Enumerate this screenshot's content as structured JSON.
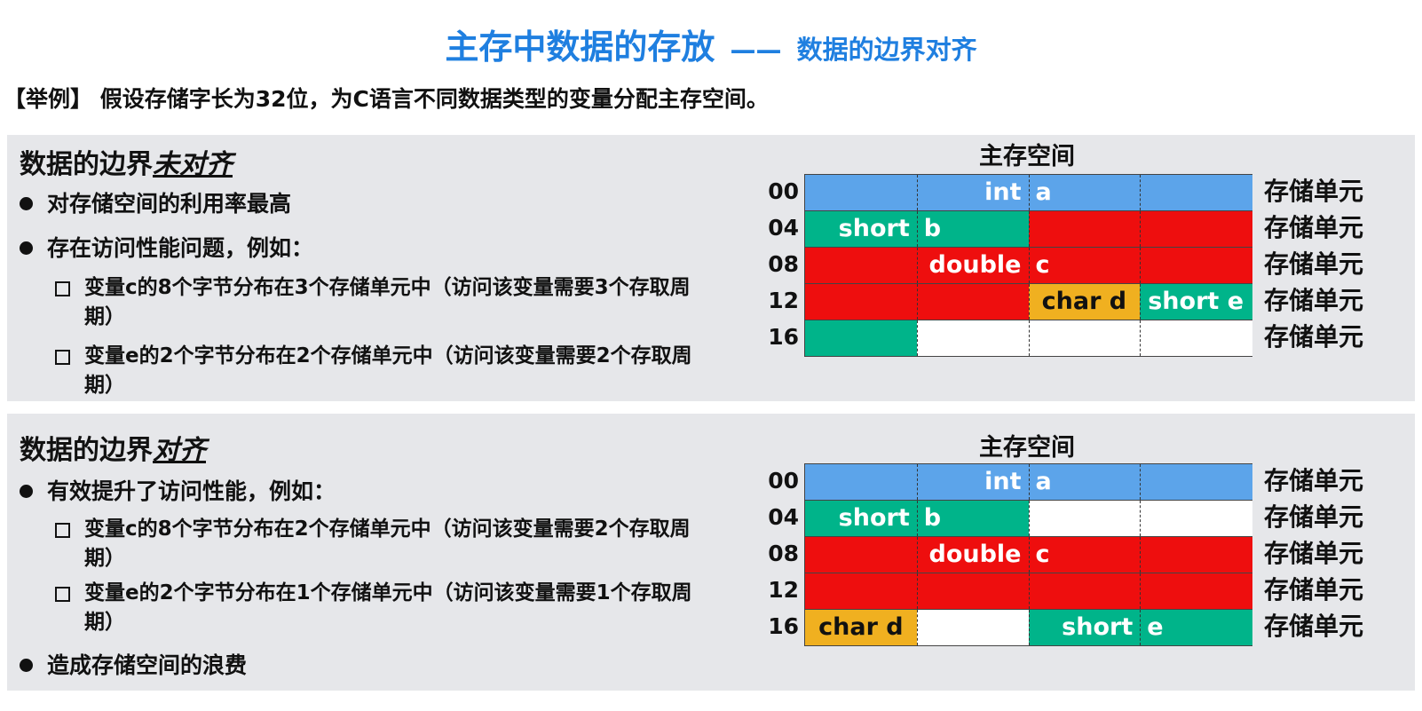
{
  "header": {
    "title_main": "主存中数据的存放",
    "title_dash": "——",
    "title_sub": "数据的边界对齐"
  },
  "intro": "【举例】 假设存储字长为32位，为C语言不同数据类型的变量分配主存空间。",
  "colors": {
    "int": "#5ca4ea",
    "short": "#00b48a",
    "double": "#ee0e0e",
    "char": "#f0b020",
    "empty": "#ffffff"
  },
  "sections": [
    {
      "heading_prefix": "数据的边界",
      "heading_em": "未对齐",
      "bullets": [
        "对存储空间的利用率最高",
        "存在访问性能问题，例如："
      ],
      "subitems": [
        "变量c的8个字节分布在3个存储单元中（访问该变量需要3个存取周期）",
        "变量e的2个字节分布在2个存储单元中（访问该变量需要2个存取周期）"
      ],
      "tail_bullet": "",
      "memory": {
        "title": "主存空间",
        "unit_label": "存储单元",
        "rows": [
          {
            "addr": "00",
            "bytes": [
              "int",
              "int",
              "int",
              "int"
            ],
            "labels": [
              {
                "text": "int",
                "col": 1,
                "align": "right"
              },
              {
                "text": "a",
                "col": 2,
                "align": "left"
              }
            ]
          },
          {
            "addr": "04",
            "bytes": [
              "short",
              "short",
              "double",
              "double"
            ],
            "labels": [
              {
                "text": "short",
                "col": 0,
                "align": "right"
              },
              {
                "text": "b",
                "col": 1,
                "align": "left"
              }
            ]
          },
          {
            "addr": "08",
            "bytes": [
              "double",
              "double",
              "double",
              "double"
            ],
            "labels": [
              {
                "text": "double",
                "col": 1,
                "align": "right"
              },
              {
                "text": "c",
                "col": 2,
                "align": "left"
              }
            ]
          },
          {
            "addr": "12",
            "bytes": [
              "double",
              "double",
              "char",
              "short"
            ],
            "labels": [
              {
                "text": "char  d",
                "col": 2,
                "align": "center",
                "dark": true
              },
              {
                "text": "short  e",
                "col": 3,
                "align": "center"
              }
            ]
          },
          {
            "addr": "16",
            "bytes": [
              "short",
              "empty",
              "empty",
              "empty"
            ],
            "labels": []
          }
        ]
      }
    },
    {
      "heading_prefix": "数据的边界",
      "heading_em": "对齐",
      "bullets": [
        "有效提升了访问性能，例如："
      ],
      "subitems": [
        "变量c的8个字节分布在2个存储单元中（访问该变量需要2个存取周期）",
        "变量e的2个字节分布在1个存储单元中（访问该变量需要1个存取周期）"
      ],
      "tail_bullet": "造成存储空间的浪费",
      "memory": {
        "title": "主存空间",
        "unit_label": "存储单元",
        "rows": [
          {
            "addr": "00",
            "bytes": [
              "int",
              "int",
              "int",
              "int"
            ],
            "labels": [
              {
                "text": "int",
                "col": 1,
                "align": "right"
              },
              {
                "text": "a",
                "col": 2,
                "align": "left"
              }
            ]
          },
          {
            "addr": "04",
            "bytes": [
              "short",
              "short",
              "empty",
              "empty"
            ],
            "labels": [
              {
                "text": "short",
                "col": 0,
                "align": "right"
              },
              {
                "text": "b",
                "col": 1,
                "align": "left"
              }
            ]
          },
          {
            "addr": "08",
            "bytes": [
              "double",
              "double",
              "double",
              "double"
            ],
            "labels": [
              {
                "text": "double",
                "col": 1,
                "align": "right"
              },
              {
                "text": "c",
                "col": 2,
                "align": "left"
              }
            ]
          },
          {
            "addr": "12",
            "bytes": [
              "double",
              "double",
              "double",
              "double"
            ],
            "labels": []
          },
          {
            "addr": "16",
            "bytes": [
              "char",
              "empty",
              "short",
              "short"
            ],
            "labels": [
              {
                "text": "char  d",
                "col": 0,
                "align": "center",
                "dark": true
              },
              {
                "text": "short",
                "col": 2,
                "align": "right"
              },
              {
                "text": "e",
                "col": 3,
                "align": "left"
              }
            ]
          }
        ]
      }
    }
  ]
}
